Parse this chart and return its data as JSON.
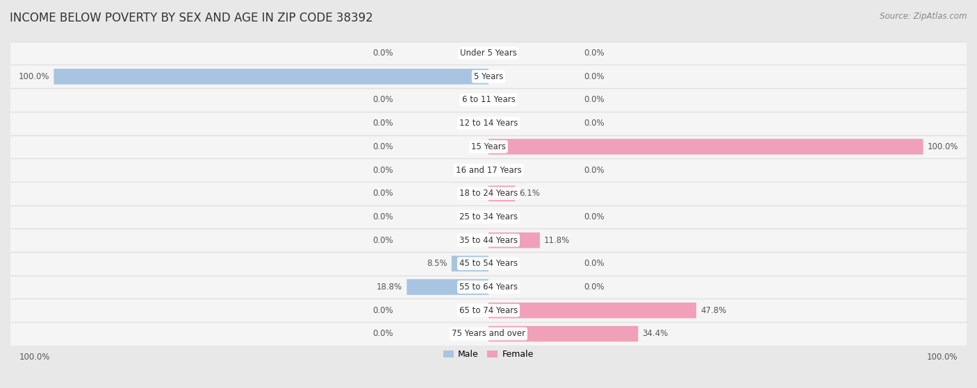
{
  "title": "INCOME BELOW POVERTY BY SEX AND AGE IN ZIP CODE 38392",
  "source": "Source: ZipAtlas.com",
  "categories": [
    "Under 5 Years",
    "5 Years",
    "6 to 11 Years",
    "12 to 14 Years",
    "15 Years",
    "16 and 17 Years",
    "18 to 24 Years",
    "25 to 34 Years",
    "35 to 44 Years",
    "45 to 54 Years",
    "55 to 64 Years",
    "65 to 74 Years",
    "75 Years and over"
  ],
  "male_values": [
    0.0,
    100.0,
    0.0,
    0.0,
    0.0,
    0.0,
    0.0,
    0.0,
    0.0,
    8.5,
    18.8,
    0.0,
    0.0
  ],
  "female_values": [
    0.0,
    0.0,
    0.0,
    0.0,
    100.0,
    0.0,
    6.1,
    0.0,
    11.8,
    0.0,
    0.0,
    47.8,
    34.4
  ],
  "male_color": "#a8c4e0",
  "female_color": "#f0a0b8",
  "male_label": "Male",
  "female_label": "Female",
  "bg_color": "#e8e8e8",
  "row_bg_color": "#f5f5f5",
  "row_sep_color": "#e0e0e0",
  "max_value": 100.0,
  "title_fontsize": 12,
  "source_fontsize": 8.5,
  "label_fontsize": 8.5,
  "category_fontsize": 8.5,
  "axis_label_fontsize": 8.5
}
